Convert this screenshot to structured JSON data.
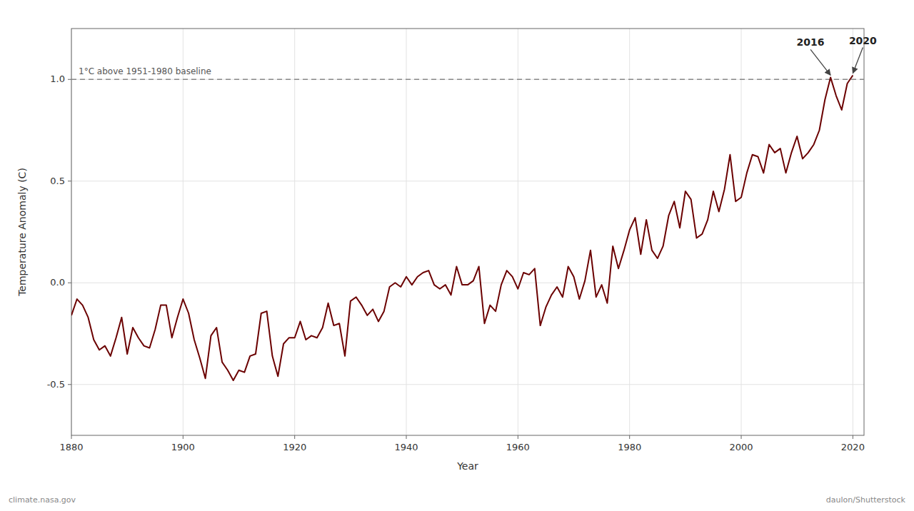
{
  "chart_data": {
    "type": "line",
    "xlabel": "Year",
    "ylabel": "Temperature Anomaly (C)",
    "xlim": [
      1880,
      2022
    ],
    "ylim": [
      -0.75,
      1.25
    ],
    "xticks": [
      1880,
      1900,
      1920,
      1940,
      1960,
      1980,
      2000,
      2020
    ],
    "yticks": [
      -0.5,
      {
        "value": 0.0,
        "label": "0.0"
      },
      0.5,
      {
        "value": 1.0,
        "label": "1.0"
      }
    ],
    "grid": true,
    "x": [
      1880,
      1881,
      1882,
      1883,
      1884,
      1885,
      1886,
      1887,
      1888,
      1889,
      1890,
      1891,
      1892,
      1893,
      1894,
      1895,
      1896,
      1897,
      1898,
      1899,
      1900,
      1901,
      1902,
      1903,
      1904,
      1905,
      1906,
      1907,
      1908,
      1909,
      1910,
      1911,
      1912,
      1913,
      1914,
      1915,
      1916,
      1917,
      1918,
      1919,
      1920,
      1921,
      1922,
      1923,
      1924,
      1925,
      1926,
      1927,
      1928,
      1929,
      1930,
      1931,
      1932,
      1933,
      1934,
      1935,
      1936,
      1937,
      1938,
      1939,
      1940,
      1941,
      1942,
      1943,
      1944,
      1945,
      1946,
      1947,
      1948,
      1949,
      1950,
      1951,
      1952,
      1953,
      1954,
      1955,
      1956,
      1957,
      1958,
      1959,
      1960,
      1961,
      1962,
      1963,
      1964,
      1965,
      1966,
      1967,
      1968,
      1969,
      1970,
      1971,
      1972,
      1973,
      1974,
      1975,
      1976,
      1977,
      1978,
      1979,
      1980,
      1981,
      1982,
      1983,
      1984,
      1985,
      1986,
      1987,
      1988,
      1989,
      1990,
      1991,
      1992,
      1993,
      1994,
      1995,
      1996,
      1997,
      1998,
      1999,
      2000,
      2001,
      2002,
      2003,
      2004,
      2005,
      2006,
      2007,
      2008,
      2009,
      2010,
      2011,
      2012,
      2013,
      2014,
      2015,
      2016,
      2017,
      2018,
      2019,
      2020
    ],
    "series": [
      {
        "color": "#6B0000",
        "values": [
          -0.16,
          -0.08,
          -0.11,
          -0.17,
          -0.28,
          -0.33,
          -0.31,
          -0.36,
          -0.27,
          -0.17,
          -0.35,
          -0.22,
          -0.27,
          -0.31,
          -0.32,
          -0.23,
          -0.11,
          -0.11,
          -0.27,
          -0.17,
          -0.08,
          -0.15,
          -0.28,
          -0.37,
          -0.47,
          -0.26,
          -0.22,
          -0.39,
          -0.43,
          -0.48,
          -0.43,
          -0.44,
          -0.36,
          -0.35,
          -0.15,
          -0.14,
          -0.36,
          -0.46,
          -0.3,
          -0.27,
          -0.27,
          -0.19,
          -0.28,
          -0.26,
          -0.27,
          -0.22,
          -0.1,
          -0.21,
          -0.2,
          -0.36,
          -0.09,
          -0.07,
          -0.11,
          -0.16,
          -0.13,
          -0.19,
          -0.14,
          -0.02,
          -0.0,
          -0.02,
          0.03,
          -0.01,
          0.03,
          0.05,
          0.06,
          -0.01,
          -0.03,
          -0.01,
          -0.06,
          0.08,
          -0.01,
          -0.01,
          0.01,
          0.08,
          -0.2,
          -0.11,
          -0.14,
          -0.01,
          0.06,
          0.03,
          -0.03,
          0.05,
          0.04,
          0.07,
          -0.21,
          -0.12,
          -0.06,
          -0.02,
          -0.07,
          0.08,
          0.03,
          -0.08,
          0.01,
          0.16,
          -0.07,
          -0.01,
          -0.1,
          0.18,
          0.07,
          0.16,
          0.26,
          0.32,
          0.14,
          0.31,
          0.16,
          0.12,
          0.18,
          0.33,
          0.4,
          0.27,
          0.45,
          0.41,
          0.22,
          0.24,
          0.31,
          0.45,
          0.35,
          0.46,
          0.63,
          0.4,
          0.42,
          0.54,
          0.63,
          0.62,
          0.54,
          0.68,
          0.64,
          0.66,
          0.54,
          0.64,
          0.72,
          0.61,
          0.64,
          0.68,
          0.75,
          0.9,
          1.01,
          0.92,
          0.85,
          0.98,
          1.02
        ]
      }
    ],
    "annotations": [
      {
        "text": "1°C above 1951-1980 baseline",
        "y": 1.0,
        "line_style": "dashed"
      },
      {
        "text": "2016",
        "x": 2016,
        "y": 1.01
      },
      {
        "text": "2020",
        "x": 2020,
        "y": 1.02
      }
    ],
    "credits": [
      "climate.nasa.gov",
      "daulon/Shutterstock"
    ]
  }
}
